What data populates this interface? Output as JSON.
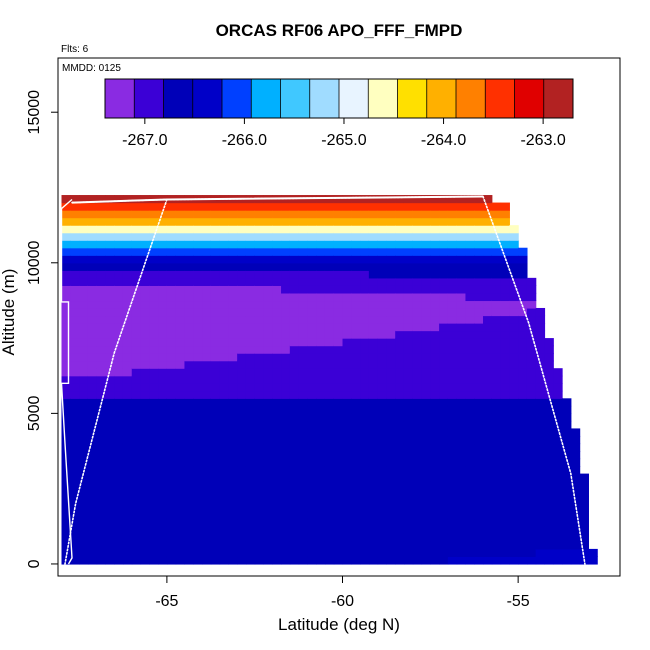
{
  "chart_data": {
    "type": "heatmap",
    "title": "ORCAS RF06 APO_FFF_FMPD",
    "flights_label": "Flts: 6",
    "mmdd_label": "MMDD: 0125",
    "xlabel": "Latitude (deg N)",
    "ylabel": "Altitude (m)",
    "xlim": [
      -68.1,
      -52.1
    ],
    "ylim": [
      -400,
      16800
    ],
    "x_ticks": [
      -65,
      -60,
      -55
    ],
    "x_tick_labels": [
      "-65",
      "-60",
      "-55"
    ],
    "y_ticks": [
      0,
      5000,
      10000,
      15000
    ],
    "y_tick_labels": [
      "0",
      "5000",
      "10000",
      "15000"
    ],
    "colorbar": {
      "min": -267.4,
      "max": -262.7,
      "ticks": [
        -267.0,
        -266.0,
        -265.0,
        -264.0,
        -263.0
      ],
      "tick_labels": [
        "-267.0",
        "-266.0",
        "-265.0",
        "-264.0",
        "-263.0"
      ],
      "colors": [
        "#8a2be2",
        "#3b00d6",
        "#0000b8",
        "#0000c8",
        "#0040ff",
        "#00b0ff",
        "#40c8ff",
        "#a0dcff",
        "#e8f4ff",
        "#ffffc0",
        "#ffe000",
        "#ffb000",
        "#ff8000",
        "#ff3000",
        "#e00000",
        "#b22222"
      ]
    },
    "field": {
      "lat_start": -68.0,
      "lat_end": -52.8,
      "lat_step": 0.25,
      "alt_top": 12200,
      "alt_step": 250,
      "right_edge": [
        {
          "lat": -55.9,
          "alt": 12200
        },
        {
          "lat": -55.5,
          "alt": 11800
        },
        {
          "lat": -55.2,
          "alt": 11200
        },
        {
          "lat": -54.9,
          "alt": 10500
        },
        {
          "lat": -54.6,
          "alt": 9500
        },
        {
          "lat": -54.35,
          "alt": 8500
        },
        {
          "lat": -54.1,
          "alt": 7500
        },
        {
          "lat": -53.85,
          "alt": 6500
        },
        {
          "lat": -53.6,
          "alt": 5500
        },
        {
          "lat": -53.35,
          "alt": 4500
        },
        {
          "lat": -53.1,
          "alt": 3000
        },
        {
          "lat": -52.8,
          "alt": 500
        }
      ],
      "vertical_profile": [
        {
          "alt": 12200,
          "value": -262.9
        },
        {
          "alt": 11800,
          "value": -263.4
        },
        {
          "alt": 11400,
          "value": -264.0
        },
        {
          "alt": 11100,
          "value": -264.8
        },
        {
          "alt": 10800,
          "value": -265.4
        },
        {
          "alt": 10500,
          "value": -265.9
        },
        {
          "alt": 10200,
          "value": -266.2
        },
        {
          "alt": 9800,
          "value": -266.6
        },
        {
          "alt": 9300,
          "value": -266.9
        },
        {
          "alt": 8700,
          "value": -267.1
        },
        {
          "alt": 7500,
          "value": -267.0
        },
        {
          "alt": 6000,
          "value": -266.85
        },
        {
          "alt": 4500,
          "value": -266.7
        },
        {
          "alt": 0,
          "value": -266.55
        }
      ]
    },
    "flight_track_segments": [
      [
        [
          -67.7,
          12000
        ],
        [
          -65.0,
          12100
        ],
        [
          -56.0,
          12200
        ]
      ],
      [
        [
          -65.0,
          12100
        ],
        [
          -66.5,
          7000
        ],
        [
          -67.6,
          2000
        ],
        [
          -67.9,
          0
        ]
      ],
      [
        [
          -56.0,
          12200
        ],
        [
          -54.7,
          8000
        ],
        [
          -53.5,
          3000
        ],
        [
          -53.1,
          0
        ]
      ]
    ],
    "left_outline_profile": [
      [
        -67.7,
        12100
      ],
      [
        -68.0,
        11800
      ],
      [
        -68.0,
        8700
      ],
      [
        -67.8,
        8700
      ],
      [
        -67.8,
        6000
      ],
      [
        -68.0,
        6000
      ],
      [
        -67.9,
        4000
      ],
      [
        -67.7,
        200
      ],
      [
        -67.8,
        0
      ]
    ],
    "colors": {
      "background": "#ffffff",
      "axis": "#000000",
      "track": "#ffffff"
    }
  }
}
